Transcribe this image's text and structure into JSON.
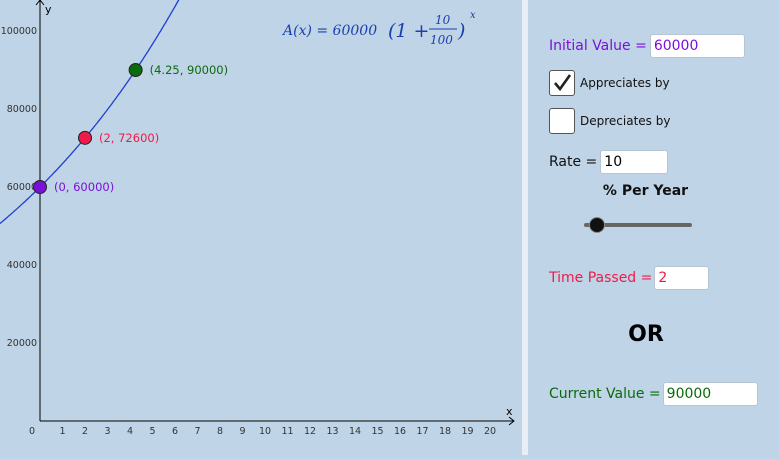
{
  "graph": {
    "formula": {
      "lhs": "A(x) = 60000",
      "open": "(1 +",
      "num": "10",
      "den": "100",
      "close": ")",
      "exp": "x"
    },
    "x_axis_label": "x",
    "y_axis_label": "y",
    "origin_label": "0",
    "x_ticks": [
      "1",
      "2",
      "3",
      "4",
      "5",
      "6",
      "7",
      "8",
      "9",
      "10",
      "11",
      "12",
      "13",
      "14",
      "15",
      "16",
      "17",
      "18",
      "19",
      "20"
    ],
    "y_ticks": [
      "20000",
      "40000",
      "60000",
      "80000",
      "100000"
    ],
    "points": [
      {
        "label": "(0, 60000)",
        "x": 0,
        "y": 60000,
        "color": "#7a10d8"
      },
      {
        "label": "(2, 72600)",
        "x": 2,
        "y": 72600,
        "color": "#ef1b4a"
      },
      {
        "label": "(4.25, 90000)",
        "x": 4.25,
        "y": 90000,
        "color": "#0b6a0b"
      }
    ],
    "curve_color": "#1f3fd0",
    "model": {
      "a": 60000,
      "rate_percent": 10
    }
  },
  "controls": {
    "initial_value_label": "Initial Value =",
    "initial_value": "60000",
    "appreciates_label": "Appreciates by",
    "appreciates_checked": true,
    "depreciates_label": "Depreciates by",
    "depreciates_checked": false,
    "rate_label": "Rate =",
    "rate_value": "10",
    "per_year_label": "% Per Year",
    "slider_fraction": 0.12,
    "time_passed_label": "Time Passed =",
    "time_passed_value": "2",
    "or_label": "OR",
    "current_value_label": "Current Value =",
    "current_value": "90000"
  },
  "colors": {
    "initial_value": "#7a10d8",
    "time_passed": "#ef1b4a",
    "current_value": "#0b6a0b"
  }
}
